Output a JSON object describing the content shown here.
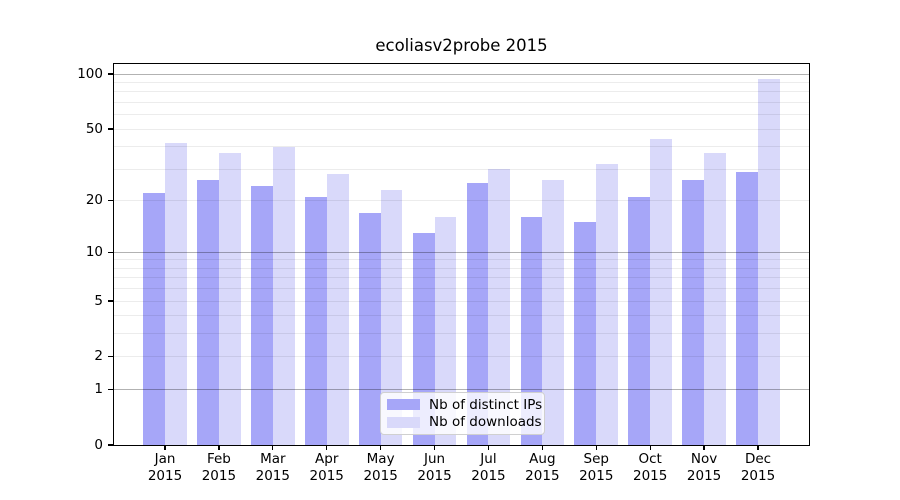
{
  "chart_data": {
    "type": "bar",
    "title": "ecoliasv2probe 2015",
    "categories": [
      "Jan\n2015",
      "Feb\n2015",
      "Mar\n2015",
      "Apr\n2015",
      "May\n2015",
      "Jun\n2015",
      "Jul\n2015",
      "Aug\n2015",
      "Sep\n2015",
      "Oct\n2015",
      "Nov\n2015",
      "Dec\n2015"
    ],
    "series": [
      {
        "name": "Nb of distinct IPs",
        "color": "#a6a6f8",
        "values": [
          22,
          26,
          24,
          21,
          17,
          13,
          25,
          16,
          15,
          21,
          26,
          29
        ]
      },
      {
        "name": "Nb of downloads",
        "color": "#d9d9fa",
        "values": [
          42,
          37,
          40,
          28,
          23,
          16,
          30,
          26,
          32,
          44,
          37,
          94
        ]
      }
    ],
    "xlabel": "",
    "ylabel": "",
    "yscale": "log1p",
    "ylim": [
      0,
      115
    ],
    "yticks": [
      0,
      1,
      2,
      5,
      10,
      20,
      50,
      100
    ],
    "major_gridlines": [
      1,
      10,
      100
    ],
    "minor_gridlines": [
      2,
      3,
      4,
      5,
      6,
      7,
      8,
      9,
      20,
      30,
      40,
      50,
      60,
      70,
      80,
      90
    ],
    "grid": true,
    "legend_position": "lower center",
    "background_color": "#ffffff",
    "axis_color": "#000000"
  }
}
